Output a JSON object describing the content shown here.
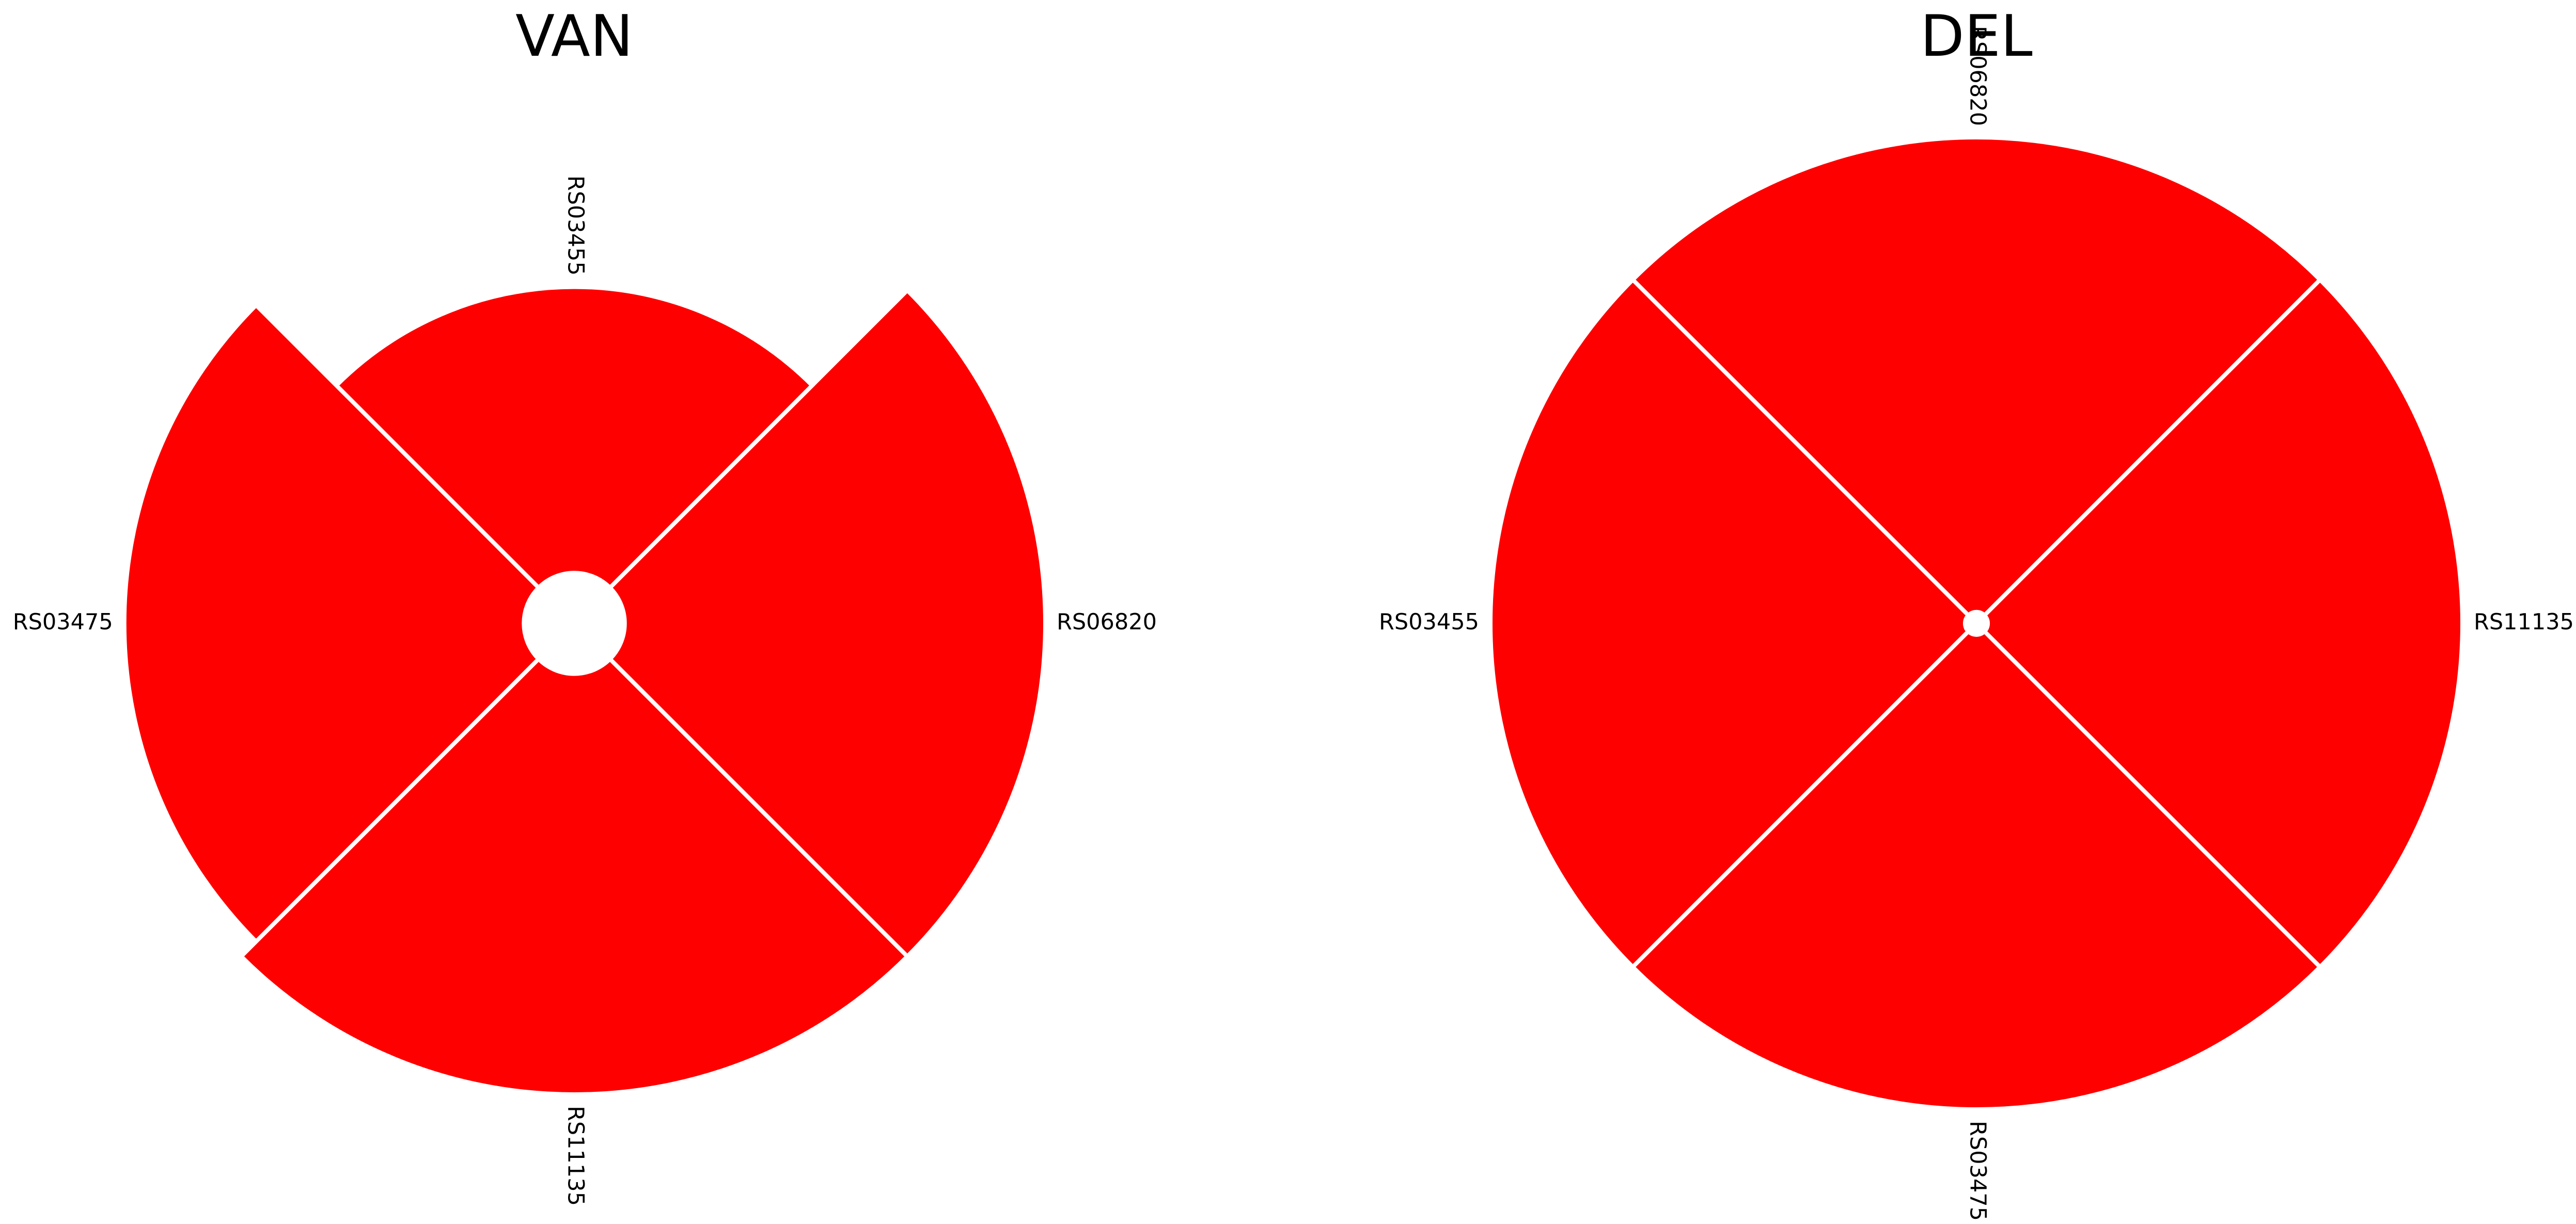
{
  "chart_data": [
    {
      "type": "radial-bar",
      "title": "VAN",
      "categories": [
        "RS06820",
        "RS03455",
        "RS03475",
        "RS11135"
      ],
      "values": [
        1.0,
        0.68,
        0.95,
        1.0
      ],
      "ylim": [
        -0.12,
        1.0
      ],
      "color": "#ff0000",
      "edge_color": "#ffffff"
    },
    {
      "type": "radial-bar",
      "title": "DEL",
      "categories": [
        "RS11135",
        "RS06820",
        "RS03455",
        "RS03475"
      ],
      "values": [
        1.0,
        1.0,
        1.0,
        1.0
      ],
      "ylim": [
        -0.024,
        1.0
      ],
      "color": "#ff0000",
      "edge_color": "#ffffff"
    }
  ]
}
